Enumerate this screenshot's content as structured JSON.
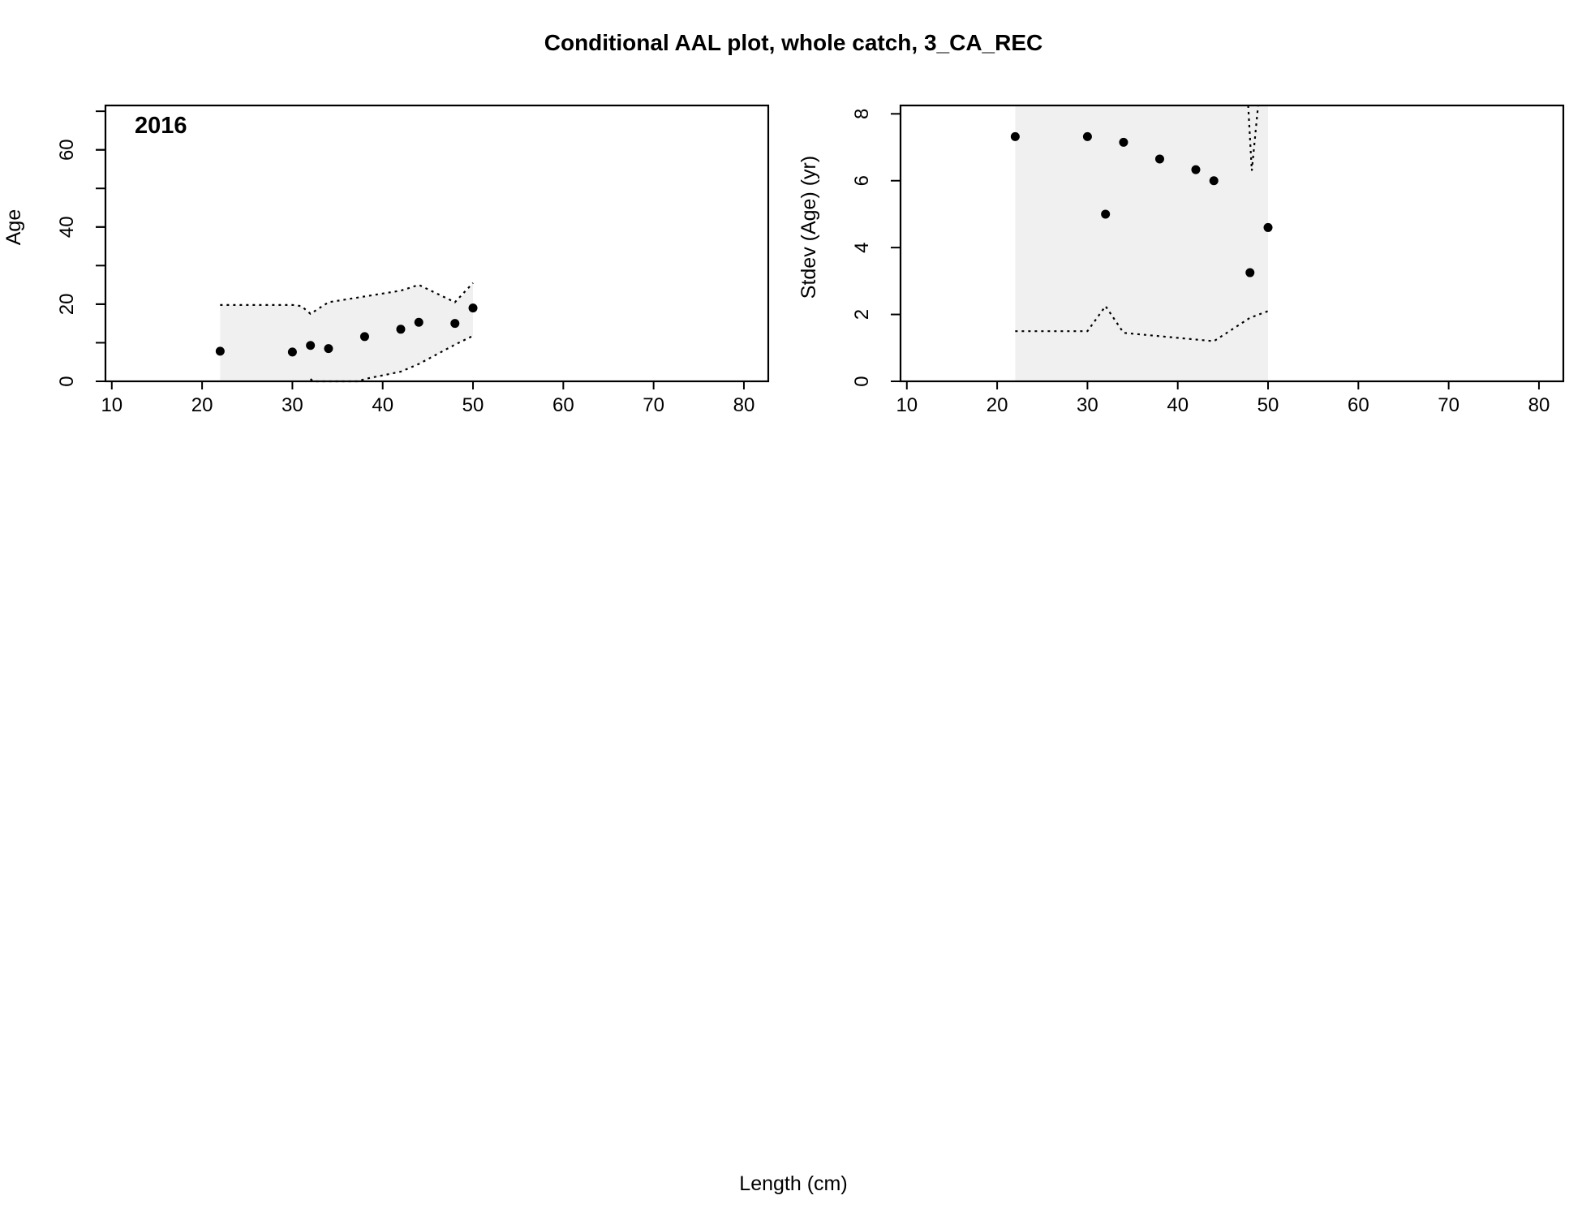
{
  "figure": {
    "title": "Conditional AAL plot, whole catch, 3_CA_REC",
    "shared_xlabel": "Length (cm)"
  },
  "chart_data": [
    {
      "type": "scatter",
      "panel_label": "2016",
      "xlabel": "",
      "ylabel": "Age",
      "xlim": [
        9.3,
        82.7
      ],
      "ylim": [
        0,
        71.5
      ],
      "xticks": [
        10,
        20,
        30,
        40,
        50,
        60,
        70,
        80
      ],
      "yticks": [
        0,
        20,
        40,
        60
      ],
      "ymin_ticks": [
        0,
        10,
        20,
        30,
        40,
        50,
        60,
        70
      ],
      "grid": false,
      "colors": {
        "points": "#000000",
        "band": "#f0f0f0",
        "lines": "#000000"
      },
      "band": {
        "x": [
          22,
          30,
          31,
          32,
          34,
          38,
          42,
          44,
          48,
          49,
          50
        ],
        "lower": [
          0,
          0,
          0,
          0,
          0,
          0,
          2.5,
          4.5,
          9.5,
          10.8,
          11.8
        ],
        "upper": [
          19.8,
          19.8,
          19.5,
          17.5,
          20.5,
          22,
          23.5,
          25,
          20.5,
          22.5,
          25.5
        ]
      },
      "series": [
        {
          "x": [
            22,
            30,
            32,
            34,
            38,
            42,
            44,
            48,
            50
          ],
          "values": [
            7.8,
            7.6,
            9.3,
            8.5,
            11.6,
            13.5,
            15.3,
            15.0,
            19.0
          ]
        }
      ],
      "upper_line": {
        "x": [
          22,
          30,
          31,
          32,
          34,
          38,
          42,
          44,
          48,
          50
        ],
        "values": [
          19.8,
          19.8,
          19.5,
          17.5,
          20.5,
          22,
          23.5,
          25,
          20.5,
          25.5
        ]
      },
      "lower_line": {
        "x": [
          32,
          32.3,
          37.3,
          38,
          42,
          44,
          48,
          50
        ],
        "values": [
          0.6,
          0,
          0,
          0.6,
          2.5,
          4.5,
          9.5,
          11.8
        ]
      }
    },
    {
      "type": "scatter",
      "panel_label": "",
      "xlabel": "",
      "ylabel": "Stdev (Age) (yr)",
      "xlim": [
        9.3,
        82.7
      ],
      "ylim": [
        0,
        8.25
      ],
      "xticks": [
        10,
        20,
        30,
        40,
        50,
        60,
        70,
        80
      ],
      "yticks": [
        0,
        2,
        4,
        6,
        8
      ],
      "grid": false,
      "colors": {
        "points": "#000000",
        "band": "#f0f0f0",
        "lines": "#000000"
      },
      "band": {
        "x": [
          22,
          50
        ],
        "lower": [
          0,
          0
        ],
        "upper": [
          8.25,
          8.25
        ]
      },
      "series": [
        {
          "x": [
            22,
            30,
            32,
            34,
            38,
            42,
            44,
            48,
            50
          ],
          "values": [
            7.32,
            7.32,
            5.0,
            7.15,
            6.65,
            6.33,
            6.0,
            3.25,
            4.6
          ]
        }
      ],
      "upper_line": {
        "x": [
          47.8,
          48.2,
          48.9
        ],
        "values": [
          8.25,
          6.3,
          8.25
        ]
      },
      "lower_line": {
        "x": [
          22,
          30,
          32,
          34,
          44,
          48,
          50
        ],
        "values": [
          1.5,
          1.5,
          2.25,
          1.45,
          1.2,
          1.9,
          2.1
        ]
      }
    }
  ]
}
